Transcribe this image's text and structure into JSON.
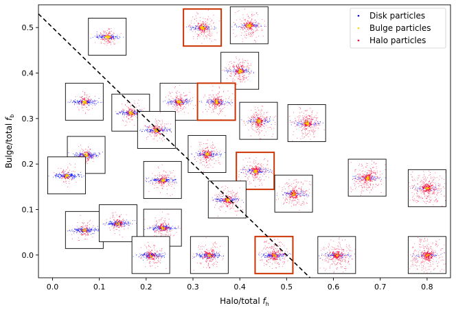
{
  "chart_data": {
    "type": "scatter",
    "title": "",
    "xlabel": "Halo/total",
    "xlabel_symbol": "f",
    "xlabel_sub": "h",
    "ylabel": "Bulge/total",
    "ylabel_symbol": "f",
    "ylabel_sub": "b",
    "xlim": [
      -0.03,
      0.85
    ],
    "ylim": [
      -0.05,
      0.55
    ],
    "xticks": [
      0.0,
      0.1,
      0.2,
      0.3,
      0.4,
      0.5,
      0.6,
      0.7,
      0.8
    ],
    "xtick_labels": [
      "0.0",
      "0.1",
      "0.2",
      "0.3",
      "0.4",
      "0.5",
      "0.6",
      "0.7",
      "0.8"
    ],
    "yticks": [
      0.0,
      0.1,
      0.2,
      0.3,
      0.4,
      0.5
    ],
    "ytick_labels": [
      "0.0",
      "0.1",
      "0.2",
      "0.3",
      "0.4",
      "0.5"
    ],
    "grid": false,
    "legend_position": "top-right",
    "legend": [
      {
        "label": "Disk particles",
        "color": "#0000ff"
      },
      {
        "label": "Bulge particles",
        "color": "#ffd400"
      },
      {
        "label": "Halo particles",
        "color": "#ff0033"
      }
    ],
    "reference_line": {
      "style": "dashed",
      "color": "#000000",
      "x": [
        -0.03,
        0.55
      ],
      "y": [
        0.53,
        -0.05
      ]
    },
    "highlight_color": "#cc3300",
    "galaxies": [
      {
        "fh": 0.117,
        "fb": 0.48,
        "highlight": false
      },
      {
        "fh": 0.32,
        "fb": 0.5,
        "highlight": true
      },
      {
        "fh": 0.42,
        "fb": 0.505,
        "highlight": false
      },
      {
        "fh": 0.4,
        "fb": 0.405,
        "highlight": false
      },
      {
        "fh": 0.068,
        "fb": 0.337,
        "highlight": false
      },
      {
        "fh": 0.167,
        "fb": 0.313,
        "highlight": false
      },
      {
        "fh": 0.27,
        "fb": 0.337,
        "highlight": false
      },
      {
        "fh": 0.35,
        "fb": 0.337,
        "highlight": true
      },
      {
        "fh": 0.44,
        "fb": 0.295,
        "highlight": false
      },
      {
        "fh": 0.543,
        "fb": 0.29,
        "highlight": false
      },
      {
        "fh": 0.222,
        "fb": 0.275,
        "highlight": false
      },
      {
        "fh": 0.33,
        "fb": 0.222,
        "highlight": false
      },
      {
        "fh": 0.072,
        "fb": 0.22,
        "highlight": false
      },
      {
        "fh": 0.03,
        "fb": 0.175,
        "highlight": false
      },
      {
        "fh": 0.235,
        "fb": 0.165,
        "highlight": false
      },
      {
        "fh": 0.433,
        "fb": 0.185,
        "highlight": true
      },
      {
        "fh": 0.515,
        "fb": 0.135,
        "highlight": false
      },
      {
        "fh": 0.373,
        "fb": 0.122,
        "highlight": false
      },
      {
        "fh": 0.672,
        "fb": 0.17,
        "highlight": false
      },
      {
        "fh": 0.8,
        "fb": 0.147,
        "highlight": false
      },
      {
        "fh": 0.068,
        "fb": 0.055,
        "highlight": false
      },
      {
        "fh": 0.14,
        "fb": 0.07,
        "highlight": false
      },
      {
        "fh": 0.235,
        "fb": 0.06,
        "highlight": false
      },
      {
        "fh": 0.21,
        "fb": 0.0,
        "highlight": false
      },
      {
        "fh": 0.335,
        "fb": 0.0,
        "highlight": false
      },
      {
        "fh": 0.473,
        "fb": 0.0,
        "highlight": true
      },
      {
        "fh": 0.607,
        "fb": 0.0,
        "highlight": false
      },
      {
        "fh": 0.8,
        "fb": 0.0,
        "highlight": false
      }
    ]
  }
}
